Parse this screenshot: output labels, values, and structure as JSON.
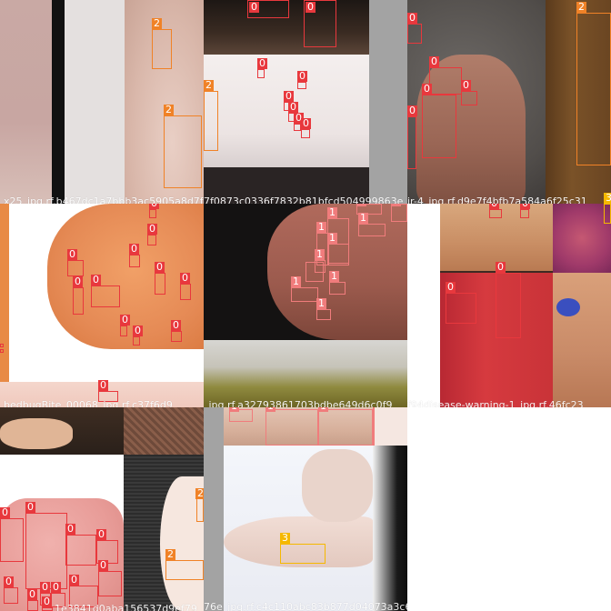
{
  "colors": {
    "class_0": "#e8383d",
    "class_1": "#f07c7c",
    "class_2": "#f08227",
    "class_3": "#f5b800"
  },
  "class_labels": {
    "c0": "0",
    "c1": "1",
    "c2": "2",
    "c3": "3"
  },
  "tiles": [
    {
      "filename": "x25_jpg.rf.b467dc1a7bbb3ac5905a8d7f0887d",
      "visible_labels": [
        "2",
        "2"
      ]
    },
    {
      "filename": "7f0873c0336f7832b81bfcd504999863e",
      "visible_labels": [
        "0",
        "0",
        "2",
        "0",
        "0",
        "0",
        "0",
        "0",
        "0"
      ]
    },
    {
      "filename": "ir-4_jpg.rf.d9e7f4bfb7a584a6f25c31",
      "visible_labels": [
        "0",
        "0",
        "0",
        "0",
        "0",
        "2",
        "3"
      ]
    },
    {
      "filename": "bedbugBite_00068_jpg.rf.c37f6d9",
      "visible_labels": [
        "0",
        "0",
        "0",
        "0",
        "0",
        "0",
        "0",
        "0",
        "0",
        "0",
        "0",
        "0",
        "0",
        "0"
      ]
    },
    {
      "filename": "_jpg.rf.a32793861703bdbe649d6c0f9",
      "visible_labels": [
        "1",
        "1",
        "1",
        "1",
        "1",
        "1",
        "1",
        "1",
        "1",
        "1",
        "1"
      ]
    },
    {
      "filename": "f94disease-warning-1_jpg.rf.46fc23",
      "visible_labels": [
        "0",
        "0",
        "0",
        "0",
        "3"
      ]
    },
    {
      "filename": "1e3841d0aba156537d9ef79",
      "visible_labels": [
        "0",
        "0",
        "0",
        "0",
        "0",
        "0",
        "0",
        "0",
        "0",
        "0",
        "0",
        "2",
        "2"
      ]
    },
    {
      "filename": "76e_jpg.rf.c4c110abc83b877d04073a3c6877d",
      "visible_labels": [
        "1",
        "1",
        "1",
        "1",
        "3"
      ]
    }
  ]
}
